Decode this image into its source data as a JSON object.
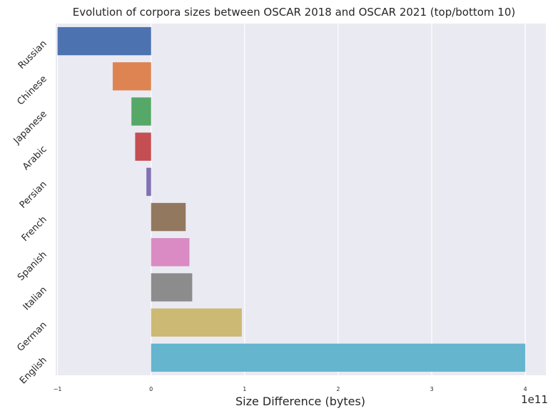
{
  "chart_data": {
    "type": "bar",
    "orientation": "horizontal",
    "title": "Evolution of corpora sizes between OSCAR 2018 and OSCAR 2021 (top/bottom 10)",
    "xlabel": "Size Difference (bytes)",
    "ylabel": "",
    "x_offset_label": "1e11",
    "scale_factor": 100000000000,
    "xlim": [
      -1.02,
      4.22
    ],
    "xticks": [
      -1,
      0,
      1,
      2,
      3,
      4
    ],
    "xtick_labels": [
      "−1",
      "0",
      "1",
      "2",
      "3",
      "4"
    ],
    "grid": true,
    "legend": "none",
    "categories": [
      "Russian",
      "Chinese",
      "Japanese",
      "Arabic",
      "Persian",
      "French",
      "Spanish",
      "Italian",
      "German",
      "English"
    ],
    "values": [
      -1.0,
      -0.41,
      -0.21,
      -0.17,
      -0.05,
      0.37,
      0.41,
      0.44,
      0.97,
      4.0
    ],
    "colors": [
      "#4c72b0",
      "#dd8452",
      "#55a868",
      "#c44e52",
      "#8172b3",
      "#937860",
      "#da8bc3",
      "#8c8c8c",
      "#ccb974",
      "#64b5cd"
    ],
    "background": "#eaeaf2",
    "grid_color": "#ffffff"
  }
}
